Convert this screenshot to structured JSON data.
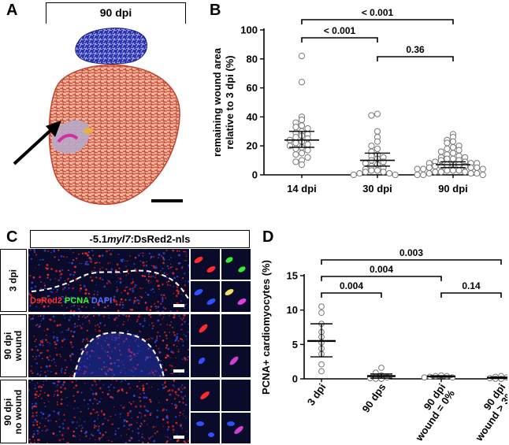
{
  "panel_letters": {
    "a": "A",
    "b": "B",
    "c": "C",
    "d": "D"
  },
  "panel_a": {
    "title": "90 dpi"
  },
  "panel_c": {
    "title_prefix": "-5.1",
    "title_gene": "myl7",
    "title_suffix": ":DsRed2-nls",
    "row1_label": "3 dpi",
    "row2_label": "90 dpi\nwound",
    "row3_label": "90 dpi\nno wound",
    "legend_dsred": "DsRed2",
    "legend_pcna": "PCNA",
    "legend_dapi": "DAPI"
  },
  "chart_data": [
    {
      "type": "scatter",
      "panel": "B",
      "ylabel": "remaining wound area\nrelative to 3 dpi (%)",
      "categories": [
        "14 dpi",
        "30 dpi",
        "90 dpi"
      ],
      "ylim": [
        0,
        100
      ],
      "yticks": [
        0,
        20,
        40,
        60,
        80,
        100
      ],
      "summary": [
        {
          "category": "14 dpi",
          "mean": 24,
          "ci_low": 19,
          "ci_high": 30
        },
        {
          "category": "30 dpi",
          "mean": 10,
          "ci_low": 6,
          "ci_high": 15
        },
        {
          "category": "90 dpi",
          "mean": 7,
          "ci_low": 5,
          "ci_high": 9
        }
      ],
      "points": [
        [
          82,
          64,
          40,
          38,
          36,
          34,
          33,
          32,
          30,
          29,
          28,
          27,
          26,
          25,
          24,
          23,
          22,
          21,
          20,
          19,
          18,
          17,
          15,
          14,
          12,
          10,
          9,
          7
        ],
        [
          42,
          41,
          30,
          26,
          23,
          20,
          18,
          16,
          14,
          13,
          12,
          11,
          10,
          9,
          8,
          7,
          6,
          5,
          4,
          3,
          3,
          2,
          2,
          1,
          1,
          0,
          0
        ],
        [
          28,
          26,
          24,
          23,
          22,
          20,
          19,
          18,
          17,
          16,
          15,
          14,
          13,
          12,
          12,
          11,
          11,
          10,
          10,
          9,
          9,
          8,
          8,
          8,
          7,
          7,
          7,
          6,
          6,
          6,
          5,
          5,
          5,
          4,
          4,
          4,
          3,
          3,
          3,
          2,
          2,
          2,
          1,
          1,
          1,
          0,
          0,
          0
        ]
      ],
      "comparisons": [
        {
          "from": "14 dpi",
          "to": "90 dpi",
          "label": "< 0.001"
        },
        {
          "from": "14 dpi",
          "to": "30 dpi",
          "label": "< 0.001"
        },
        {
          "from": "30 dpi",
          "to": "90 dpi",
          "label": "0.36"
        }
      ]
    },
    {
      "type": "scatter",
      "panel": "D",
      "ylabel": "PCNA+ cardiomyocytes (%)",
      "categories": [
        "3 dpi",
        "90 dps",
        "90 dpi\nwound = 0%",
        "90 dpi\nwound > 3%"
      ],
      "ylim": [
        0,
        15
      ],
      "yticks": [
        0,
        5,
        10,
        15
      ],
      "summary": [
        {
          "category": "3 dpi",
          "mean": 5.5,
          "ci_low": 3.2,
          "ci_high": 8.0
        },
        {
          "category": "90 dps",
          "mean": 0.4,
          "ci_low": 0.1,
          "ci_high": 0.7
        },
        {
          "category": "90 dpi wound = 0%",
          "mean": 0.35,
          "ci_low": 0.25,
          "ci_high": 0.45
        },
        {
          "category": "90 dpi wound > 3%",
          "mean": 0.15,
          "ci_low": 0.05,
          "ci_high": 0.25
        }
      ],
      "points": [
        [
          10.5,
          9.6,
          8.0,
          6.8,
          6.1,
          5.3,
          4.4,
          3.6,
          2.1,
          1.1
        ],
        [
          1.6,
          0.9,
          0.5,
          0.3,
          0.2,
          0.1,
          0.0,
          0.0
        ],
        [
          0.5,
          0.4,
          0.4,
          0.3,
          0.2,
          0.2
        ],
        [
          0.4,
          0.3,
          0.2,
          0.1,
          0.0,
          0.0
        ]
      ],
      "comparisons": [
        {
          "from": "3 dpi",
          "to": "90 dpi\nwound > 3%",
          "label": "0.003"
        },
        {
          "from": "3 dpi",
          "to": "90 dpi\nwound = 0%",
          "label": "0.004"
        },
        {
          "from": "3 dpi",
          "to": "90 dps",
          "label": "0.004"
        },
        {
          "from": "90 dpi\nwound = 0%",
          "to": "90 dpi\nwound > 3%",
          "label": "0.14"
        }
      ]
    }
  ]
}
